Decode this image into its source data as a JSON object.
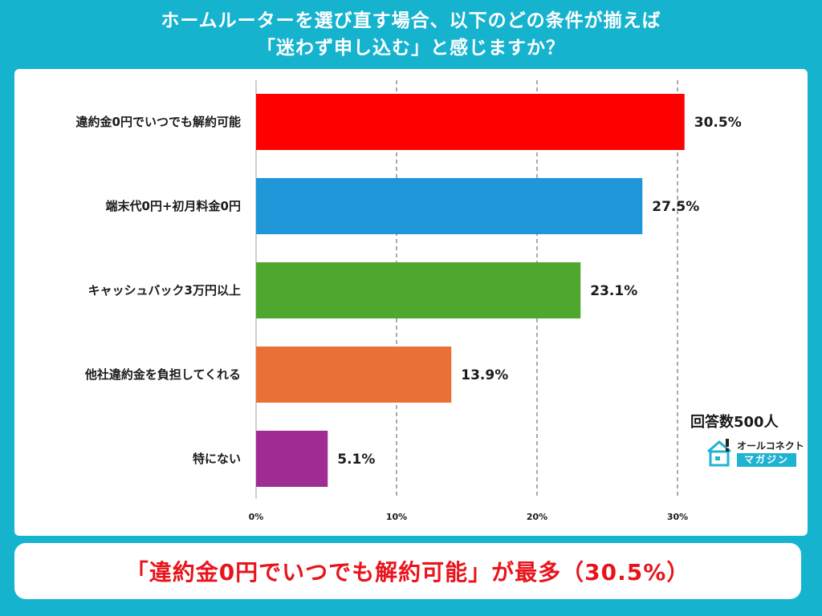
{
  "title": {
    "line1": "ホームルーターを選び直す場合、以下のどの条件が揃えば",
    "line2": "「迷わず申し込む」と感じますか？"
  },
  "respondents": "回答数500人",
  "logo": {
    "top": "オールコネクト",
    "bottom": "マガジン"
  },
  "footer": "「違約金0円でいつでも解約可能」が最多（30.5%）",
  "chart_data": {
    "type": "bar",
    "orientation": "horizontal",
    "categories": [
      "違約金0円でいつでも解約可能",
      "端末代0円+初月料金0円",
      "キャッシュバック3万円以上",
      "他社違約金を負担してくれる",
      "特にない"
    ],
    "values": [
      30.5,
      27.5,
      23.1,
      13.9,
      5.1
    ],
    "value_labels": [
      "30.5%",
      "27.5%",
      "23.1%",
      "13.9%",
      "5.1%"
    ],
    "colors": [
      "#ff0000",
      "#1e96d8",
      "#4ea72e",
      "#ea7135",
      "#a02b93"
    ],
    "xlim": [
      0,
      30
    ],
    "xticks": [
      0,
      10,
      20,
      30
    ],
    "xtick_labels": [
      "0%",
      "10%",
      "20%",
      "30%"
    ],
    "grid": "vertical dashed"
  }
}
